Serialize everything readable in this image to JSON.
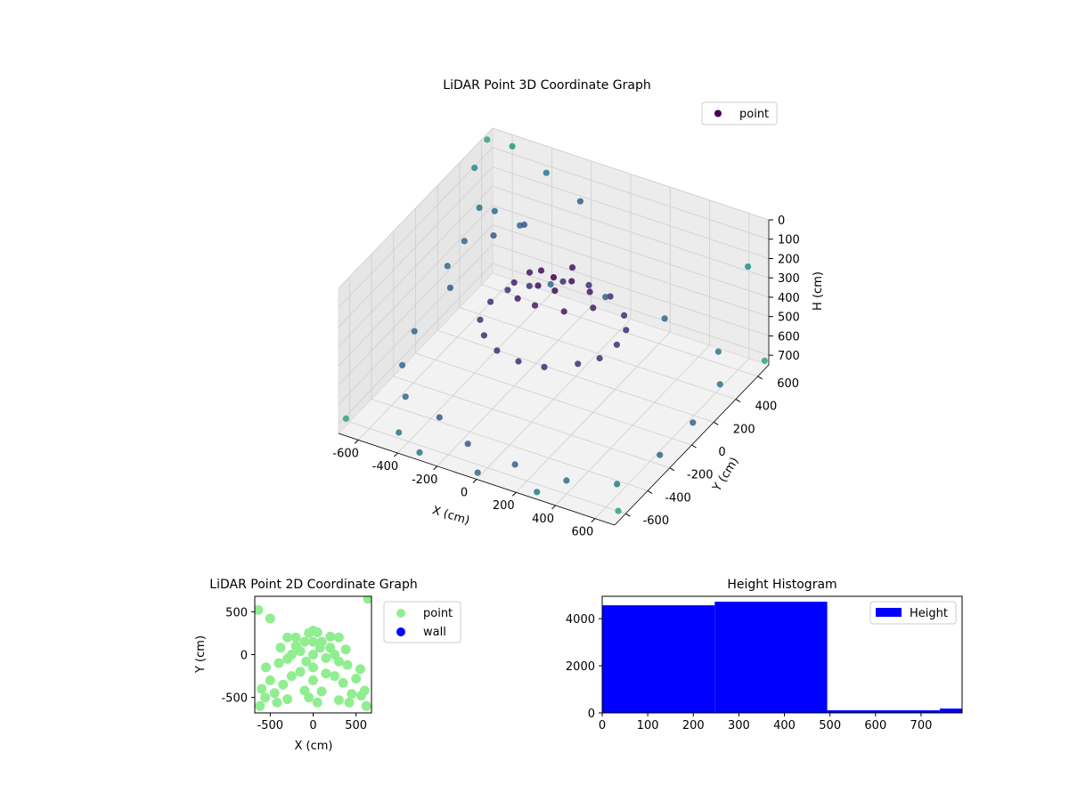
{
  "chart_data": [
    {
      "type": "scatter",
      "projection": "3d",
      "title": "LiDAR Point 3D Coordinate Graph",
      "xlabel": "X (cm)",
      "ylabel": "Y (cm)",
      "zlabel": "H (cm)",
      "xlim": [
        -700,
        700
      ],
      "ylim": [
        -700,
        700
      ],
      "zlim": [
        750,
        0
      ],
      "z_axis_inverted": true,
      "xticks": [
        -600,
        -400,
        -200,
        0,
        200,
        400,
        600
      ],
      "yticks": [
        -600,
        -400,
        -200,
        0,
        200,
        400,
        600
      ],
      "zticks": [
        0,
        100,
        200,
        300,
        400,
        500,
        600,
        700
      ],
      "colormap": "viridis",
      "grid": true,
      "legend": {
        "position": "top-right",
        "entries": [
          "point"
        ]
      },
      "series": [
        {
          "name": "point",
          "color": "#440154",
          "points": [
            [
              0,
              0,
              120
            ],
            [
              80,
              20,
              125
            ],
            [
              -80,
              30,
              130
            ],
            [
              40,
              -60,
              140
            ],
            [
              -40,
              -70,
              135
            ],
            [
              150,
              60,
              180
            ],
            [
              -150,
              50,
              175
            ],
            [
              120,
              -120,
              185
            ],
            [
              -110,
              -130,
              190
            ],
            [
              0,
              170,
              170
            ],
            [
              0,
              -170,
              165
            ],
            [
              200,
              0,
              210
            ],
            [
              -200,
              0,
              215
            ],
            [
              320,
              0,
              360
            ],
            [
              -320,
              0,
              355
            ],
            [
              0,
              320,
              350
            ],
            [
              0,
              -320,
              365
            ],
            [
              240,
              210,
              360
            ],
            [
              -240,
              210,
              370
            ],
            [
              240,
              -210,
              362
            ],
            [
              -230,
              -220,
              368
            ],
            [
              300,
              120,
              362
            ],
            [
              -300,
              120,
              358
            ],
            [
              300,
              -120,
              366
            ],
            [
              -300,
              -130,
              364
            ],
            [
              120,
              300,
              356
            ],
            [
              -120,
              300,
              360
            ],
            [
              120,
              -300,
              366
            ],
            [
              -120,
              -300,
              362
            ],
            [
              -600,
              400,
              200
            ],
            [
              -550,
              450,
              230
            ],
            [
              -620,
              300,
              320
            ],
            [
              -500,
              350,
              280
            ],
            [
              -650,
              200,
              400
            ],
            [
              -580,
              100,
              430
            ],
            [
              -450,
              500,
              300
            ],
            [
              -400,
              450,
              250
            ],
            [
              -650,
              -100,
              560
            ],
            [
              -600,
              -300,
              600
            ],
            [
              -500,
              -450,
              640
            ],
            [
              -300,
              -500,
              650
            ],
            [
              -100,
              -600,
              660
            ],
            [
              150,
              -620,
              670
            ],
            [
              400,
              -600,
              680
            ],
            [
              600,
              -500,
              690
            ],
            [
              650,
              -200,
              700
            ],
            [
              650,
              100,
              710
            ],
            [
              620,
              400,
              700
            ],
            [
              500,
              600,
              690
            ],
            [
              -100,
              650,
              640
            ],
            [
              200,
              650,
              650
            ],
            [
              -350,
              600,
              630
            ],
            [
              650,
              600,
              200
            ],
            [
              -700,
              650,
              30
            ],
            [
              -600,
              700,
              60
            ],
            [
              -400,
              650,
              100
            ],
            [
              -200,
              600,
              150
            ],
            [
              -680,
              500,
              80
            ],
            [
              -690,
              -650,
              700
            ],
            [
              690,
              -650,
              710
            ],
            [
              690,
              680,
              720
            ],
            [
              -450,
              -600,
              720
            ],
            [
              -300,
              -680,
              725
            ],
            [
              300,
              -690,
              720
            ],
            [
              0,
              -690,
              722
            ]
          ]
        }
      ]
    },
    {
      "type": "scatter",
      "title": "LiDAR Point 2D Coordinate Graph",
      "xlabel": "X (cm)",
      "ylabel": "Y (cm)",
      "xlim": [
        -680,
        680
      ],
      "ylim": [
        -680,
        680
      ],
      "xticks": [
        -500,
        0,
        500
      ],
      "yticks": [
        -500,
        0,
        500
      ],
      "legend": {
        "position": "outside-right",
        "entries": [
          "point",
          "wall"
        ]
      },
      "series": [
        {
          "name": "point",
          "color": "#90ee90",
          "points": [
            [
              0,
              0
            ],
            [
              -100,
              150
            ],
            [
              100,
              150
            ],
            [
              -200,
              100
            ],
            [
              200,
              80
            ],
            [
              -300,
              -50
            ],
            [
              300,
              -80
            ],
            [
              -150,
              -200
            ],
            [
              150,
              -220
            ],
            [
              0,
              -300
            ],
            [
              -50,
              250
            ],
            [
              50,
              260
            ],
            [
              -250,
              -250
            ],
            [
              250,
              -250
            ],
            [
              -400,
              -100
            ],
            [
              400,
              -120
            ],
            [
              -350,
              -350
            ],
            [
              350,
              -330
            ],
            [
              -100,
              -420
            ],
            [
              100,
              -430
            ],
            [
              -500,
              -300
            ],
            [
              500,
              -280
            ],
            [
              -450,
              -450
            ],
            [
              450,
              -460
            ],
            [
              -300,
              -520
            ],
            [
              300,
              -530
            ],
            [
              -550,
              -150
            ],
            [
              550,
              -170
            ],
            [
              -200,
              200
            ],
            [
              200,
              210
            ],
            [
              0,
              150
            ],
            [
              -600,
              -400
            ],
            [
              600,
              -420
            ],
            [
              -620,
              -600
            ],
            [
              620,
              -600
            ],
            [
              -640,
              520
            ],
            [
              -500,
              420
            ],
            [
              640,
              650
            ],
            [
              -80,
              -80
            ],
            [
              80,
              80
            ],
            [
              -250,
              0
            ],
            [
              250,
              0
            ],
            [
              0,
              -150
            ],
            [
              -380,
              80
            ],
            [
              380,
              60
            ],
            [
              -150,
              40
            ],
            [
              150,
              -40
            ],
            [
              -50,
              -500
            ],
            [
              50,
              -560
            ],
            [
              -420,
              -560
            ],
            [
              420,
              -560
            ],
            [
              -560,
              -500
            ],
            [
              560,
              -480
            ],
            [
              0,
              280
            ],
            [
              -300,
              200
            ],
            [
              300,
              200
            ]
          ]
        },
        {
          "name": "wall",
          "color": "#0000ff",
          "points": []
        }
      ]
    },
    {
      "type": "bar",
      "title": "Height Histogram",
      "xlabel": "",
      "ylabel": "",
      "xlim": [
        0,
        790
      ],
      "ylim": [
        0,
        4950
      ],
      "xticks": [
        0,
        100,
        200,
        300,
        400,
        500,
        600,
        700
      ],
      "yticks": [
        0,
        2000,
        4000
      ],
      "legend": {
        "position": "top-right",
        "entries": [
          "Height"
        ]
      },
      "series": [
        {
          "name": "Height",
          "color": "#0000ff",
          "bins": [
            {
              "x0": 0,
              "x1": 247,
              "count": 4570
            },
            {
              "x0": 247,
              "x1": 494,
              "count": 4720
            },
            {
              "x0": 494,
              "x1": 741,
              "count": 110
            },
            {
              "x0": 741,
              "x1": 790,
              "count": 180
            }
          ]
        }
      ]
    }
  ]
}
